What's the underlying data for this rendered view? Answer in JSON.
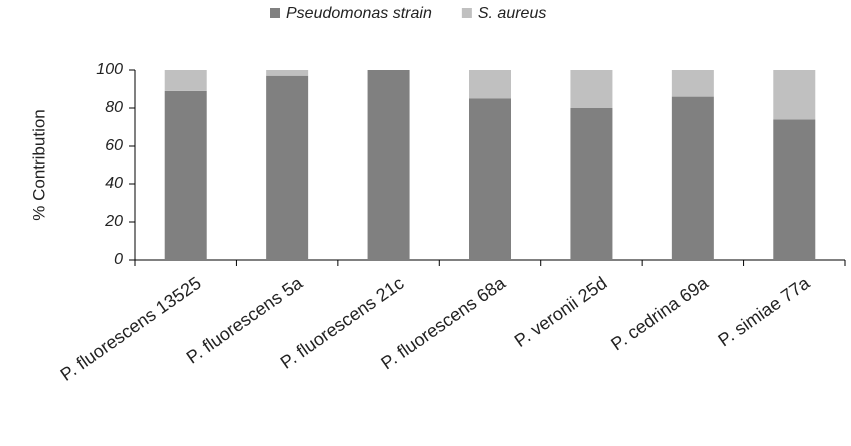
{
  "chart_data": {
    "type": "stacked_bar",
    "categories": [
      "P. fluorescens 13525",
      "P. fluorescens 5a",
      "P. fluorescens 21c",
      "P. fluorescens 68a",
      "P. veronii 25d",
      "P. cedrina 69a",
      "P. simiae 77a"
    ],
    "series": [
      {
        "name": "Pseudomonas strain",
        "color": "#808080",
        "values": [
          89,
          97,
          100,
          85,
          80,
          86,
          74
        ]
      },
      {
        "name": "S. aureus",
        "color": "#c0c0c0",
        "values": [
          11,
          3,
          0,
          15,
          20,
          14,
          26
        ]
      }
    ],
    "y_label": "% Contribution",
    "ylim": [
      0,
      100
    ],
    "yticks": [
      0,
      20,
      40,
      60,
      80,
      100
    ],
    "legend": "top"
  }
}
